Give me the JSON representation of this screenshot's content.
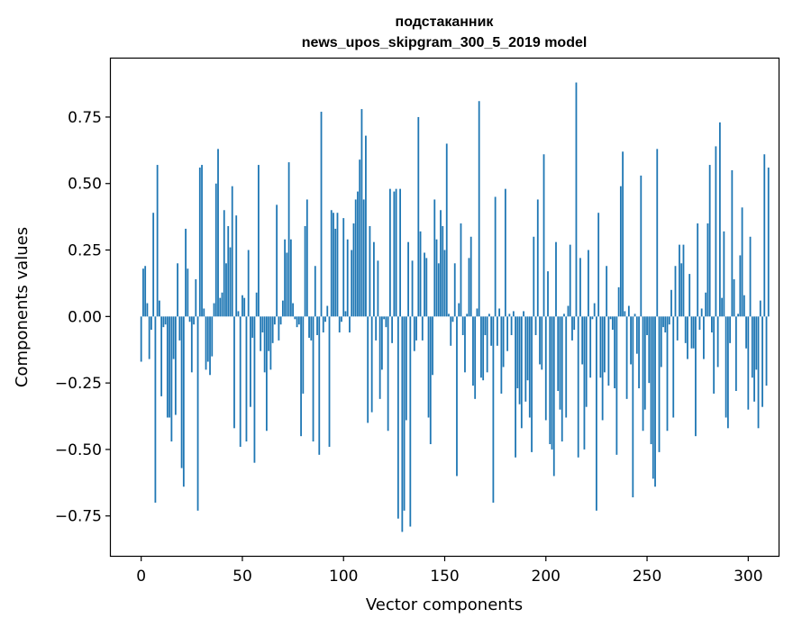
{
  "chart_data": {
    "type": "bar",
    "title": "подстаканник",
    "subtitle": "news_upos_skipgram_300_5_2019 model",
    "xlabel": "Vector components",
    "ylabel": "Components values",
    "xlim": [
      -15,
      315
    ],
    "ylim": [
      -0.9,
      0.97
    ],
    "xticks": [
      0,
      50,
      100,
      150,
      200,
      250,
      300
    ],
    "yticks": [
      -0.75,
      -0.5,
      -0.25,
      0.0,
      0.25,
      0.5,
      0.75
    ],
    "xtick_labels": [
      "0",
      "50",
      "100",
      "150",
      "200",
      "250",
      "300"
    ],
    "ytick_labels": [
      "−0.75",
      "−0.50",
      "−0.25",
      "0.00",
      "0.25",
      "0.50",
      "0.75"
    ],
    "bar_color": "#1f77b4",
    "values": [
      -0.17,
      0.18,
      0.19,
      0.05,
      -0.16,
      -0.05,
      0.39,
      -0.7,
      0.57,
      0.06,
      -0.3,
      -0.04,
      -0.03,
      -0.38,
      -0.38,
      -0.47,
      -0.16,
      -0.37,
      0.2,
      -0.09,
      -0.57,
      -0.64,
      0.33,
      0.18,
      -0.02,
      -0.21,
      -0.03,
      0.14,
      -0.73,
      0.56,
      0.57,
      0.03,
      -0.2,
      -0.17,
      -0.22,
      -0.15,
      0.05,
      0.5,
      0.63,
      0.07,
      0.09,
      0.4,
      0.2,
      0.34,
      0.26,
      0.49,
      -0.42,
      0.38,
      0.02,
      -0.49,
      0.08,
      0.07,
      -0.47,
      0.25,
      -0.34,
      -0.08,
      -0.55,
      0.09,
      0.57,
      -0.13,
      -0.06,
      -0.21,
      -0.43,
      -0.13,
      -0.2,
      -0.1,
      -0.03,
      0.42,
      -0.09,
      -0.03,
      0.06,
      0.29,
      0.24,
      0.58,
      0.29,
      0.05,
      -0.01,
      -0.04,
      -0.03,
      -0.45,
      -0.29,
      0.34,
      0.44,
      -0.08,
      -0.09,
      -0.47,
      0.19,
      -0.07,
      -0.52,
      0.77,
      -0.06,
      -0.02,
      0.04,
      -0.49,
      0.4,
      0.39,
      0.33,
      0.39,
      -0.06,
      -0.02,
      0.37,
      0.02,
      0.29,
      -0.06,
      0.25,
      0.35,
      0.44,
      0.47,
      0.59,
      0.78,
      0.44,
      0.68,
      -0.4,
      0.34,
      -0.36,
      0.28,
      -0.09,
      0.21,
      -0.31,
      -0.2,
      -0.01,
      -0.04,
      -0.43,
      0.48,
      -0.1,
      0.47,
      0.48,
      -0.76,
      0.48,
      -0.81,
      -0.73,
      -0.39,
      0.28,
      -0.79,
      0.21,
      -0.13,
      -0.09,
      0.75,
      0.32,
      -0.09,
      0.24,
      0.22,
      -0.38,
      -0.48,
      -0.22,
      0.44,
      0.29,
      0.2,
      0.4,
      0.34,
      0.25,
      0.65,
      0.01,
      -0.11,
      -0.02,
      0.2,
      -0.6,
      0.05,
      0.35,
      -0.07,
      -0.21,
      0.01,
      0.22,
      0.3,
      -0.26,
      -0.31,
      0.03,
      0.81,
      -0.23,
      -0.24,
      -0.07,
      -0.21,
      0.01,
      -0.11,
      -0.7,
      0.45,
      -0.11,
      0.03,
      -0.29,
      -0.19,
      0.48,
      -0.13,
      0.01,
      -0.07,
      0.02,
      -0.53,
      -0.27,
      -0.33,
      -0.42,
      0.02,
      -0.32,
      -0.24,
      -0.38,
      -0.51,
      0.3,
      -0.07,
      0.44,
      -0.18,
      -0.2,
      0.61,
      -0.39,
      0.17,
      -0.48,
      -0.5,
      -0.6,
      0.28,
      -0.28,
      -0.35,
      -0.47,
      0.01,
      -0.38,
      0.04,
      0.27,
      -0.09,
      -0.05,
      0.88,
      -0.53,
      0.22,
      -0.18,
      -0.5,
      -0.34,
      0.25,
      -0.23,
      -0.01,
      0.05,
      -0.73,
      0.39,
      -0.23,
      -0.39,
      -0.21,
      0.19,
      -0.26,
      -0.01,
      -0.05,
      -0.27,
      -0.52,
      0.11,
      0.49,
      0.62,
      0.02,
      -0.31,
      0.04,
      -0.18,
      -0.68,
      0.01,
      -0.14,
      -0.27,
      0.53,
      -0.43,
      -0.35,
      -0.07,
      -0.25,
      -0.48,
      -0.61,
      -0.64,
      0.63,
      -0.51,
      -0.19,
      -0.04,
      -0.06,
      -0.43,
      -0.03,
      0.1,
      -0.38,
      0.19,
      -0.09,
      0.27,
      0.2,
      0.27,
      -0.1,
      -0.16,
      0.16,
      -0.12,
      -0.12,
      -0.45,
      0.35,
      -0.05,
      0.03,
      -0.16,
      0.09,
      0.35,
      0.57,
      -0.06,
      -0.29,
      0.64,
      -0.19,
      0.73,
      0.07,
      0.32,
      -0.38,
      -0.42,
      -0.1,
      0.55,
      0.14,
      -0.28,
      0.01,
      0.23,
      0.41,
      0.08,
      -0.12,
      -0.35,
      0.3,
      -0.23,
      -0.32,
      -0.2,
      -0.42,
      0.06,
      -0.34,
      0.61,
      -0.26,
      0.56
    ]
  }
}
